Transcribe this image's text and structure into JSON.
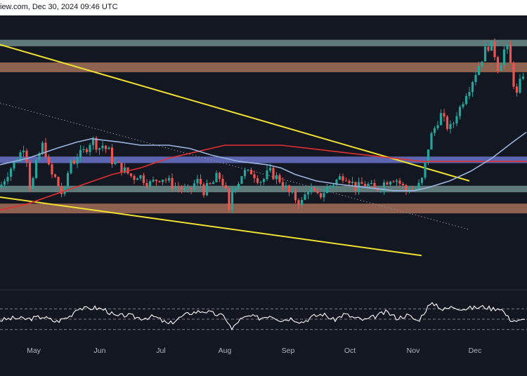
{
  "header": {
    "source_text": "iew.com, Dec 30, 2024 09:46 UTC"
  },
  "colors": {
    "background": "#131722",
    "bullish": "#26a69a",
    "bearish": "#ef5350",
    "channel_lines": "#f0e030",
    "sma_200": "#e03030",
    "sma_100": "#9ab4de",
    "zone_green": "#6f8c8a",
    "zone_brown": "#a66e58",
    "zone_blue": "#6a73c8",
    "rsi_line": "#ffffff"
  },
  "chart_data": {
    "type": "candlestick",
    "title": "",
    "xlabel": "",
    "ylabel": "",
    "x_ticks": [
      "May",
      "Jun",
      "Jul",
      "Aug",
      "Sep",
      "Oct",
      "Nov",
      "Dec"
    ],
    "series_style": "daily candles",
    "close_path": [
      [
        0,
        57
      ],
      [
        12,
        62
      ],
      [
        25,
        66
      ],
      [
        30,
        68
      ],
      [
        32,
        71
      ],
      [
        38,
        66
      ],
      [
        42,
        58
      ],
      [
        45,
        56
      ],
      [
        48,
        61
      ],
      [
        54,
        66
      ],
      [
        60,
        70
      ],
      [
        64,
        69
      ],
      [
        68,
        64
      ],
      [
        72,
        61
      ],
      [
        78,
        60
      ],
      [
        84,
        57
      ],
      [
        90,
        54
      ],
      [
        94,
        57
      ],
      [
        98,
        64
      ],
      [
        102,
        66
      ],
      [
        106,
        65
      ],
      [
        110,
        67
      ],
      [
        116,
        67
      ],
      [
        122,
        69
      ],
      [
        126,
        70
      ],
      [
        130,
        72
      ],
      [
        135,
        71
      ],
      [
        140,
        69
      ],
      [
        146,
        70
      ],
      [
        150,
        69
      ],
      [
        155,
        68
      ],
      [
        160,
        65
      ],
      [
        166,
        64
      ],
      [
        172,
        63
      ],
      [
        178,
        62
      ],
      [
        184,
        61
      ],
      [
        190,
        60
      ],
      [
        196,
        61
      ],
      [
        202,
        60
      ],
      [
        208,
        59
      ],
      [
        214,
        58
      ],
      [
        220,
        59
      ],
      [
        226,
        60
      ],
      [
        232,
        60
      ],
      [
        238,
        59
      ],
      [
        244,
        58
      ],
      [
        250,
        57
      ],
      [
        256,
        57
      ],
      [
        262,
        56
      ],
      [
        266,
        55
      ],
      [
        270,
        56
      ],
      [
        276,
        58
      ],
      [
        282,
        59
      ],
      [
        286,
        58
      ],
      [
        290,
        56
      ],
      [
        296,
        57
      ],
      [
        302,
        58
      ],
      [
        308,
        60
      ],
      [
        314,
        60
      ],
      [
        318,
        58
      ],
      [
        322,
        55
      ],
      [
        324,
        52
      ],
      [
        326,
        49
      ],
      [
        328,
        54
      ],
      [
        330,
        56
      ],
      [
        335,
        58
      ],
      [
        340,
        59
      ],
      [
        346,
        62
      ],
      [
        352,
        61
      ],
      [
        358,
        62
      ],
      [
        362,
        61
      ],
      [
        366,
        60
      ],
      [
        372,
        59
      ],
      [
        378,
        60
      ],
      [
        382,
        62
      ],
      [
        388,
        61
      ],
      [
        394,
        60
      ],
      [
        400,
        59
      ],
      [
        406,
        57
      ],
      [
        412,
        55
      ],
      [
        418,
        54
      ],
      [
        424,
        53
      ],
      [
        428,
        52
      ],
      [
        432,
        53
      ],
      [
        436,
        56
      ],
      [
        440,
        57
      ],
      [
        446,
        55
      ],
      [
        452,
        54
      ],
      [
        458,
        55
      ],
      [
        462,
        56
      ],
      [
        466,
        57
      ],
      [
        472,
        58
      ],
      [
        478,
        59
      ],
      [
        484,
        60
      ],
      [
        490,
        61
      ],
      [
        496,
        60
      ],
      [
        502,
        58
      ],
      [
        506,
        57
      ],
      [
        510,
        57
      ],
      [
        516,
        58
      ],
      [
        522,
        58
      ],
      [
        528,
        57
      ],
      [
        534,
        56
      ],
      [
        538,
        57
      ],
      [
        544,
        58
      ],
      [
        550,
        59
      ],
      [
        556,
        60
      ],
      [
        562,
        60
      ],
      [
        566,
        59
      ],
      [
        570,
        58
      ],
      [
        574,
        57
      ],
      [
        578,
        56
      ],
      [
        582,
        57
      ],
      [
        586,
        56
      ],
      [
        590,
        56
      ],
      [
        594,
        57
      ],
      [
        598,
        58
      ],
      [
        602,
        60
      ],
      [
        606,
        65
      ],
      [
        610,
        70
      ],
      [
        614,
        73
      ],
      [
        618,
        75
      ],
      [
        622,
        77
      ],
      [
        626,
        80
      ],
      [
        630,
        78
      ],
      [
        636,
        76
      ],
      [
        640,
        75
      ],
      [
        644,
        76
      ],
      [
        650,
        80
      ],
      [
        656,
        82
      ],
      [
        662,
        86
      ],
      [
        668,
        88
      ],
      [
        674,
        91
      ],
      [
        680,
        94
      ],
      [
        686,
        97
      ],
      [
        690,
        99
      ],
      [
        696,
        101
      ],
      [
        702,
        100
      ],
      [
        706,
        96
      ],
      [
        710,
        93
      ],
      [
        714,
        97
      ],
      [
        720,
        101
      ],
      [
        724,
        98
      ],
      [
        728,
        93
      ],
      [
        732,
        88
      ],
      [
        736,
        85
      ],
      [
        740,
        89
      ],
      [
        744,
        92
      ],
      [
        749,
        94
      ]
    ],
    "sma_100": [
      [
        0,
        64
      ],
      [
        40,
        66
      ],
      [
        80,
        69
      ],
      [
        110,
        71
      ],
      [
        130,
        72
      ],
      [
        170,
        71
      ],
      [
        200,
        70
      ],
      [
        240,
        70
      ],
      [
        270,
        69
      ],
      [
        300,
        67
      ],
      [
        320,
        66
      ],
      [
        340,
        65
      ],
      [
        380,
        64
      ],
      [
        400,
        63
      ],
      [
        420,
        61
      ],
      [
        450,
        59
      ],
      [
        480,
        58
      ],
      [
        520,
        57
      ],
      [
        560,
        56
      ],
      [
        590,
        56
      ],
      [
        610,
        57
      ],
      [
        640,
        59
      ],
      [
        670,
        62
      ],
      [
        700,
        66
      ],
      [
        730,
        71
      ],
      [
        749,
        74
      ]
    ],
    "sma_200": [
      [
        0,
        50
      ],
      [
        40,
        52
      ],
      [
        80,
        55
      ],
      [
        120,
        58
      ],
      [
        160,
        61
      ],
      [
        200,
        63
      ],
      [
        240,
        66
      ],
      [
        280,
        68
      ],
      [
        320,
        70
      ],
      [
        360,
        70
      ],
      [
        400,
        70
      ],
      [
        440,
        69
      ],
      [
        480,
        68
      ],
      [
        520,
        67
      ],
      [
        560,
        66
      ],
      [
        600,
        65
      ],
      [
        640,
        65
      ],
      [
        680,
        65
      ],
      [
        720,
        65
      ],
      [
        749,
        65
      ]
    ],
    "horizontal_zones": [
      {
        "color_key": "zone_green",
        "from": 100.5,
        "to": 102.5
      },
      {
        "color_key": "zone_brown",
        "from": 92.5,
        "to": 95.5
      },
      {
        "color_key": "zone_blue",
        "from": 64.5,
        "to": 66.5
      },
      {
        "color_key": "zone_green",
        "from": 55.5,
        "to": 57.5
      },
      {
        "color_key": "zone_brown",
        "from": 49,
        "to": 52
      }
    ],
    "trend_lines": [
      {
        "from": [
          0,
          101
        ],
        "to": [
          668,
          59
        ]
      },
      {
        "from": [
          0,
          54
        ],
        "to": [
          600,
          36
        ],
        "note": ""
      },
      {
        "from": [
          0,
          83
        ],
        "to": [
          668,
          44
        ],
        "style": "dotted"
      }
    ],
    "rsi": {
      "levels": [
        70,
        50,
        30
      ],
      "values": [
        [
          0,
          48
        ],
        [
          20,
          52
        ],
        [
          40,
          50
        ],
        [
          60,
          55
        ],
        [
          80,
          45
        ],
        [
          100,
          56
        ],
        [
          110,
          72
        ],
        [
          120,
          70
        ],
        [
          135,
          72
        ],
        [
          150,
          68
        ],
        [
          165,
          55
        ],
        [
          180,
          58
        ],
        [
          200,
          52
        ],
        [
          220,
          55
        ],
        [
          240,
          40
        ],
        [
          255,
          52
        ],
        [
          270,
          62
        ],
        [
          290,
          66
        ],
        [
          305,
          60
        ],
        [
          320,
          55
        ],
        [
          330,
          30
        ],
        [
          340,
          48
        ],
        [
          355,
          56
        ],
        [
          370,
          52
        ],
        [
          385,
          58
        ],
        [
          400,
          48
        ],
        [
          415,
          52
        ],
        [
          430,
          44
        ],
        [
          445,
          55
        ],
        [
          460,
          60
        ],
        [
          475,
          48
        ],
        [
          490,
          60
        ],
        [
          505,
          52
        ],
        [
          520,
          48
        ],
        [
          535,
          56
        ],
        [
          550,
          64
        ],
        [
          565,
          52
        ],
        [
          580,
          58
        ],
        [
          595,
          46
        ],
        [
          610,
          76
        ],
        [
          620,
          80
        ],
        [
          630,
          68
        ],
        [
          645,
          74
        ],
        [
          660,
          70
        ],
        [
          675,
          72
        ],
        [
          690,
          74
        ],
        [
          700,
          70
        ],
        [
          712,
          72
        ],
        [
          725,
          50
        ],
        [
          738,
          46
        ],
        [
          749,
          49
        ]
      ]
    }
  }
}
